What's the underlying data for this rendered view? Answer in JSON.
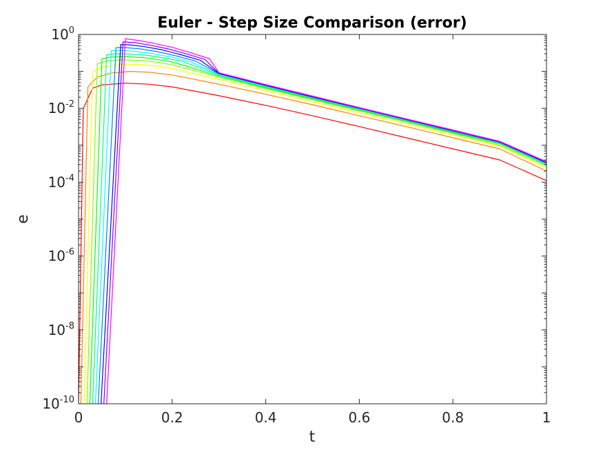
{
  "chart_data": {
    "type": "line",
    "title": "Euler - Step Size Comparison (error)",
    "xlabel": "t",
    "ylabel": "e",
    "xlim": [
      0,
      1
    ],
    "ylim_log10": [
      -10,
      0
    ],
    "yscale": "log",
    "grid": false,
    "legend": "none",
    "x_ticks": [
      {
        "value": 0,
        "label": "0"
      },
      {
        "value": 0.2,
        "label": "0.2"
      },
      {
        "value": 0.4,
        "label": "0.4"
      },
      {
        "value": 0.6,
        "label": "0.6"
      },
      {
        "value": 0.8,
        "label": "0.8"
      },
      {
        "value": 1,
        "label": "1"
      }
    ],
    "y_ticks": [
      {
        "exp": 0,
        "base": "10",
        "sup": "0"
      },
      {
        "exp": -2,
        "base": "10",
        "sup": "-2"
      },
      {
        "exp": -4,
        "base": "10",
        "sup": "-4"
      },
      {
        "exp": -6,
        "base": "10",
        "sup": "-6"
      },
      {
        "exp": -8,
        "base": "10",
        "sup": "-8"
      },
      {
        "exp": -10,
        "base": "10",
        "sup": "-10"
      }
    ],
    "series": [
      {
        "color": "#ff0000",
        "x": [
          0,
          0.01,
          0.03,
          0.05,
          0.1,
          0.15,
          0.2,
          0.3,
          0.4,
          0.5,
          0.6,
          0.7,
          0.8,
          0.9,
          1.0
        ],
        "y": [
          1e-10,
          0.0098,
          0.035,
          0.043,
          0.048,
          0.045,
          0.038,
          0.022,
          0.012,
          0.0063,
          0.0032,
          0.0016,
          0.0008,
          0.0004,
          0.00011
        ]
      },
      {
        "color": "#ff8000",
        "x": [
          0.005,
          0.02,
          0.04,
          0.07,
          0.11,
          0.15,
          0.2,
          0.3,
          0.4,
          0.5,
          0.6,
          0.7,
          0.8,
          0.9,
          1.0
        ],
        "y": [
          1e-10,
          0.038,
          0.07,
          0.09,
          0.1,
          0.095,
          0.08,
          0.045,
          0.024,
          0.0125,
          0.0063,
          0.0032,
          0.0016,
          0.0008,
          0.0002
        ]
      },
      {
        "color": "#ffff00",
        "x": [
          0.012,
          0.03,
          0.05,
          0.08,
          0.12,
          0.16,
          0.2,
          0.3,
          0.4,
          0.5,
          0.6,
          0.7,
          0.8,
          0.9,
          1.0
        ],
        "y": [
          1e-10,
          0.1,
          0.13,
          0.15,
          0.155,
          0.145,
          0.12,
          0.06,
          0.03,
          0.015,
          0.0075,
          0.0038,
          0.0019,
          0.00095,
          0.00025
        ]
      },
      {
        "color": "#80ff00",
        "x": [
          0.018,
          0.04,
          0.06,
          0.09,
          0.13,
          0.17,
          0.2,
          0.3,
          0.4,
          0.5,
          0.6,
          0.7,
          0.8,
          0.9,
          1.0
        ],
        "y": [
          1e-10,
          0.16,
          0.19,
          0.205,
          0.2,
          0.175,
          0.15,
          0.07,
          0.034,
          0.017,
          0.0085,
          0.0042,
          0.0021,
          0.001,
          0.00028
        ]
      },
      {
        "color": "#00ff00",
        "x": [
          0.024,
          0.05,
          0.07,
          0.1,
          0.14,
          0.18,
          0.2,
          0.3,
          0.4,
          0.5,
          0.6,
          0.7,
          0.8,
          0.9,
          1.0
        ],
        "y": [
          1e-10,
          0.22,
          0.245,
          0.25,
          0.235,
          0.2,
          0.18,
          0.075,
          0.036,
          0.018,
          0.009,
          0.0045,
          0.0022,
          0.0011,
          0.0003
        ]
      },
      {
        "color": "#00ff80",
        "x": [
          0.03,
          0.06,
          0.08,
          0.11,
          0.15,
          0.19,
          0.22,
          0.3,
          0.4,
          0.5,
          0.6,
          0.7,
          0.8,
          0.9,
          1.0
        ],
        "y": [
          1e-10,
          0.28,
          0.3,
          0.295,
          0.27,
          0.22,
          0.19,
          0.08,
          0.038,
          0.019,
          0.0095,
          0.0047,
          0.0023,
          0.00115,
          0.00031
        ]
      },
      {
        "color": "#00ffff",
        "x": [
          0.036,
          0.07,
          0.09,
          0.12,
          0.16,
          0.2,
          0.24,
          0.3,
          0.4,
          0.5,
          0.6,
          0.7,
          0.8,
          0.9,
          1.0
        ],
        "y": [
          1e-10,
          0.36,
          0.37,
          0.35,
          0.3,
          0.24,
          0.18,
          0.083,
          0.04,
          0.02,
          0.0098,
          0.0048,
          0.0024,
          0.0012,
          0.00032
        ]
      },
      {
        "color": "#0080ff",
        "x": [
          0.042,
          0.08,
          0.1,
          0.13,
          0.17,
          0.21,
          0.25,
          0.3,
          0.4,
          0.5,
          0.6,
          0.7,
          0.8,
          0.9,
          1.0
        ],
        "y": [
          1e-10,
          0.44,
          0.44,
          0.41,
          0.34,
          0.26,
          0.19,
          0.086,
          0.041,
          0.02,
          0.01,
          0.0049,
          0.0024,
          0.0012,
          0.00033
        ]
      },
      {
        "color": "#0000ff",
        "x": [
          0.048,
          0.09,
          0.11,
          0.14,
          0.18,
          0.22,
          0.26,
          0.3,
          0.4,
          0.5,
          0.6,
          0.7,
          0.8,
          0.9,
          1.0
        ],
        "y": [
          1e-10,
          0.53,
          0.52,
          0.47,
          0.38,
          0.28,
          0.2,
          0.088,
          0.042,
          0.0205,
          0.0101,
          0.005,
          0.0025,
          0.00123,
          0.00034
        ]
      },
      {
        "color": "#8000ff",
        "x": [
          0.054,
          0.095,
          0.12,
          0.15,
          0.19,
          0.23,
          0.27,
          0.3,
          0.4,
          0.5,
          0.6,
          0.7,
          0.8,
          0.9,
          1.0
        ],
        "y": [
          1e-10,
          0.63,
          0.6,
          0.52,
          0.41,
          0.3,
          0.21,
          0.09,
          0.043,
          0.021,
          0.0103,
          0.0051,
          0.0025,
          0.00125,
          0.00035
        ]
      },
      {
        "color": "#ff00ff",
        "x": [
          0.06,
          0.1,
          0.13,
          0.16,
          0.2,
          0.24,
          0.28,
          0.3,
          0.4,
          0.5,
          0.6,
          0.7,
          0.8,
          0.9,
          1.0
        ],
        "y": [
          1e-10,
          0.77,
          0.68,
          0.58,
          0.45,
          0.32,
          0.22,
          0.092,
          0.044,
          0.0215,
          0.0105,
          0.0052,
          0.0026,
          0.00128,
          0.00036
        ]
      }
    ]
  }
}
